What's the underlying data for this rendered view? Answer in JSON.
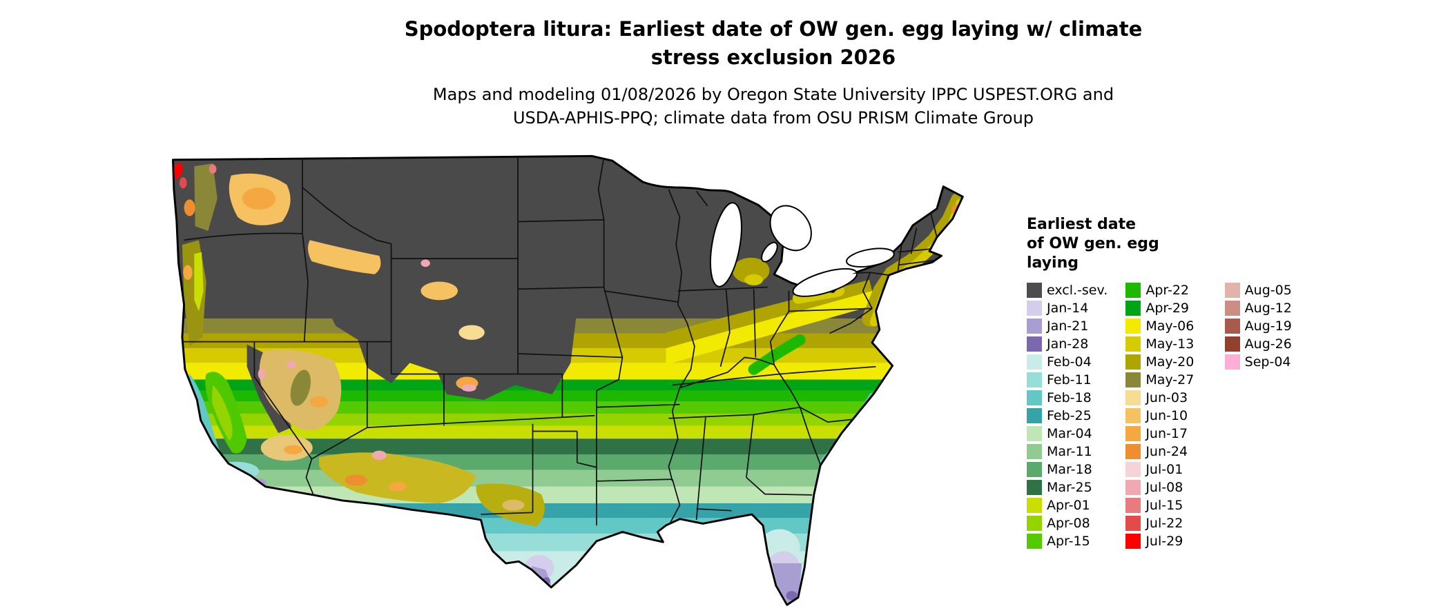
{
  "title": {
    "lines": [
      "Spodoptera litura: Earliest date of OW gen. egg laying w/ climate",
      "stress exclusion 2026"
    ]
  },
  "subtitle": {
    "lines": [
      "Maps and modeling 01/08/2026 by Oregon State University IPPC USPEST.ORG and",
      "USDA-APHIS-PPQ; climate data from OSU PRISM Climate Group"
    ]
  },
  "legend": {
    "title_lines": [
      "Earliest date",
      "of OW gen. egg",
      "laying"
    ],
    "columns": [
      {
        "entries": [
          {
            "label": "excl.-sev.",
            "color": "#4d4d4d"
          },
          {
            "label": "Jan-14",
            "color": "#d4cdeb"
          },
          {
            "label": "Jan-21",
            "color": "#a99ed1"
          },
          {
            "label": "Jan-28",
            "color": "#7b68ae"
          },
          {
            "label": "Feb-04",
            "color": "#c9ece8"
          },
          {
            "label": "Feb-11",
            "color": "#97ded9"
          },
          {
            "label": "Feb-18",
            "color": "#62c8c6"
          },
          {
            "label": "Feb-25",
            "color": "#35a3a8"
          },
          {
            "label": "Mar-04",
            "color": "#bfe6b4"
          },
          {
            "label": "Mar-11",
            "color": "#90cb92"
          },
          {
            "label": "Mar-18",
            "color": "#5ba96c"
          },
          {
            "label": "Mar-25",
            "color": "#2f7246"
          },
          {
            "label": "Apr-01",
            "color": "#cadf00"
          },
          {
            "label": "Apr-08",
            "color": "#94d400"
          },
          {
            "label": "Apr-15",
            "color": "#55ca00"
          }
        ]
      },
      {
        "entries": [
          {
            "label": "Apr-22",
            "color": "#1db800"
          },
          {
            "label": "Apr-29",
            "color": "#00a516"
          },
          {
            "label": "May-06",
            "color": "#f2ea00"
          },
          {
            "label": "May-13",
            "color": "#d6ca00"
          },
          {
            "label": "May-20",
            "color": "#b0a400"
          },
          {
            "label": "May-27",
            "color": "#8b8739"
          },
          {
            "label": "Jun-03",
            "color": "#f8dc94"
          },
          {
            "label": "Jun-10",
            "color": "#f6c161"
          },
          {
            "label": "Jun-17",
            "color": "#f4a83f"
          },
          {
            "label": "Jun-24",
            "color": "#ef8d31"
          },
          {
            "label": "Jul-01",
            "color": "#f6d3d8"
          },
          {
            "label": "Jul-08",
            "color": "#f0a9b0"
          },
          {
            "label": "Jul-15",
            "color": "#e97a7e"
          },
          {
            "label": "Jul-22",
            "color": "#e4494b"
          },
          {
            "label": "Jul-29",
            "color": "#fe0000"
          }
        ]
      },
      {
        "entries": [
          {
            "label": "Aug-05",
            "color": "#e2b3ab"
          },
          {
            "label": "Aug-12",
            "color": "#cc8d82"
          },
          {
            "label": "Aug-19",
            "color": "#aa5a4c"
          },
          {
            "label": "Aug-26",
            "color": "#93402f"
          },
          {
            "label": "Sep-04",
            "color": "#feaed6"
          }
        ]
      }
    ]
  }
}
